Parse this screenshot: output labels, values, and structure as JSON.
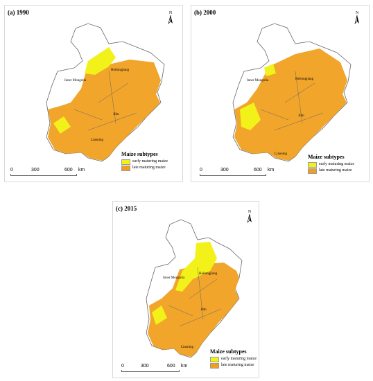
{
  "colors": {
    "early": "#f2f21a",
    "late": "#f0a020",
    "background": "#ffffff",
    "outline": "#666666"
  },
  "legend": {
    "title": "Maize subtypes",
    "items": [
      {
        "label": "early maturing maize",
        "color": "#f2f21a"
      },
      {
        "label": "late maturing maize",
        "color": "#f0a020"
      }
    ]
  },
  "scale": {
    "ticks": [
      "0",
      "300",
      "600"
    ],
    "unit": "km"
  },
  "north_label": "N",
  "provinces": {
    "inner_mongolia": "Inner Mongolia",
    "heilongjiang": "Heilongjiang",
    "jilin": "Jilin",
    "liaoning": "Liaoning"
  },
  "panels": [
    {
      "title": "(a) 1990",
      "early_share": 0.2
    },
    {
      "title": "(b) 2000",
      "early_share": 0.15
    },
    {
      "title": "(c) 2015",
      "early_share": 0.25
    }
  ]
}
